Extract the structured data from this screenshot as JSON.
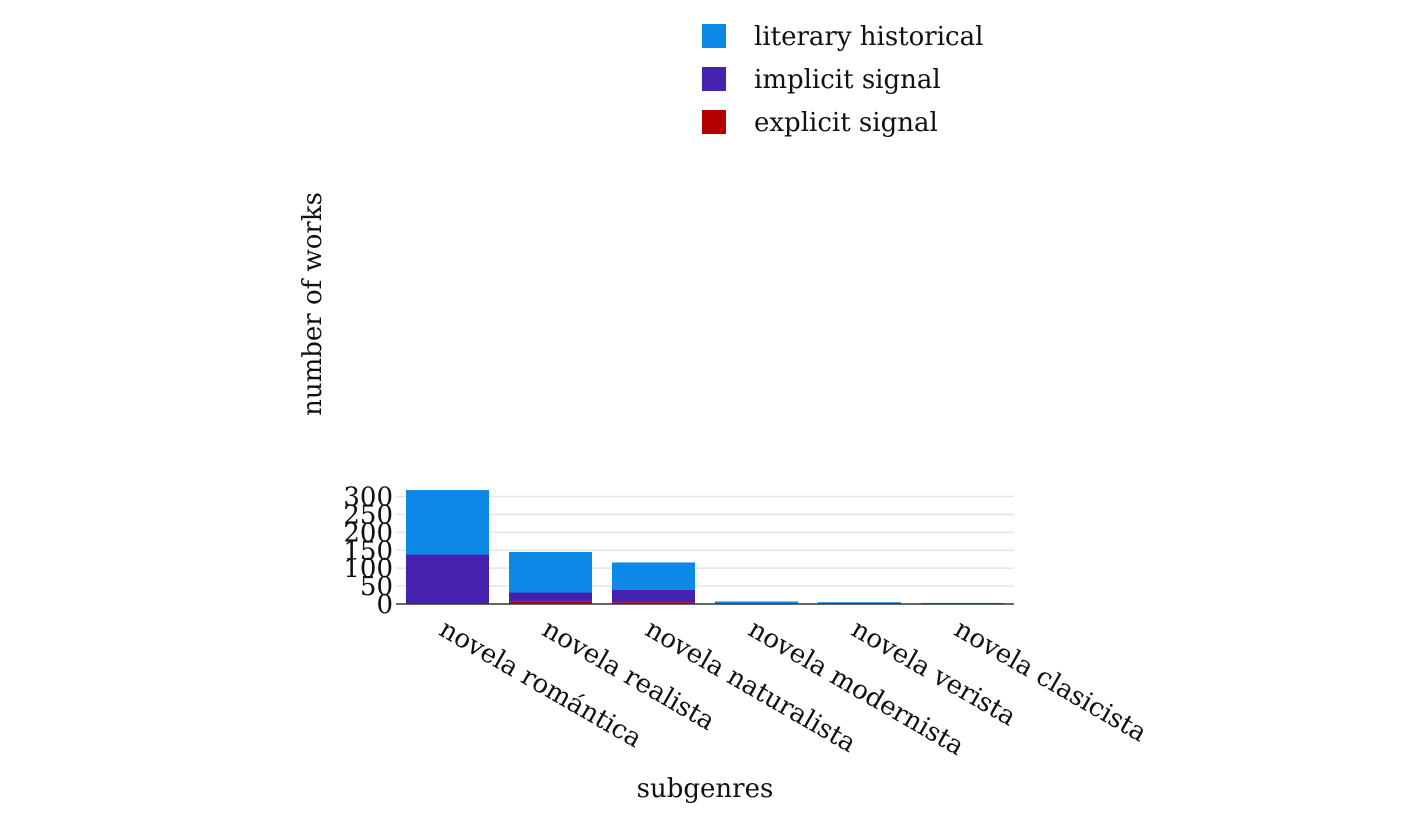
{
  "chart_data": {
    "type": "bar",
    "stacked": true,
    "categories": [
      "novela romántica",
      "novela realista",
      "novela naturalista",
      "novela modernista",
      "novela verista",
      "novela clasicista"
    ],
    "series": [
      {
        "name": "explicit signal",
        "color": "#b30000",
        "values": [
          0,
          6,
          5,
          0,
          0,
          0
        ]
      },
      {
        "name": "implicit signal",
        "color": "#4421af",
        "values": [
          138,
          26,
          35,
          0,
          0,
          0
        ]
      },
      {
        "name": "literary historical",
        "color": "#0d88e6",
        "values": [
          180,
          113,
          76,
          7,
          5,
          3
        ]
      }
    ],
    "legend_order": [
      "literary historical",
      "implicit signal",
      "explicit signal"
    ],
    "legend_position": "top-right",
    "xlabel": "subgenres",
    "ylabel": "number of works",
    "ylim": [
      0,
      318
    ],
    "yticks": [
      0,
      50,
      100,
      150,
      200,
      250,
      300
    ],
    "grid": true
  }
}
